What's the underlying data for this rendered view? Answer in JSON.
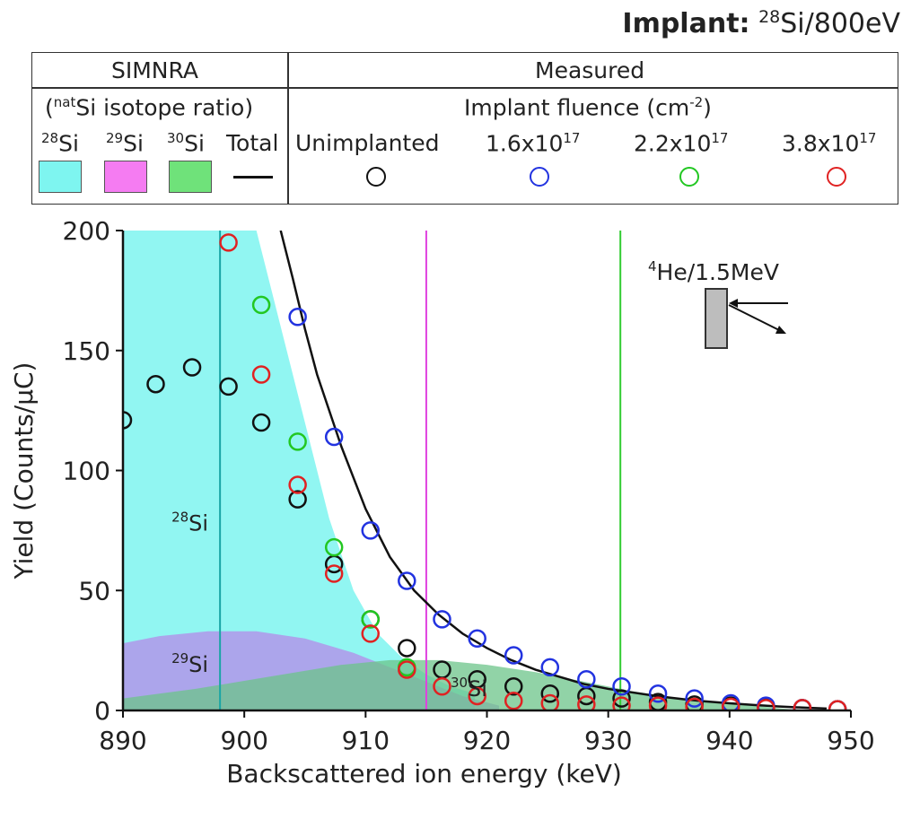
{
  "header": {
    "implant_label": "Implant:",
    "implant_sup": "28",
    "implant_rest": "Si/800eV"
  },
  "legend": {
    "simnra_header": "SIMNRA",
    "measured_header": "Measured",
    "simnra_sub_pre": "(",
    "simnra_sub_sup": "nat",
    "simnra_sub_rest": "Si isotope ratio)",
    "fluence_label": "Implant fluence (cm",
    "fluence_sup": "-2",
    "fluence_close": ")",
    "items": [
      {
        "sup": "28",
        "label": "Si",
        "color": "#7ef5f0",
        "kind": "area"
      },
      {
        "sup": "29",
        "label": "Si",
        "color": "#f57cf2",
        "kind": "area"
      },
      {
        "sup": "30",
        "label": "Si",
        "color": "#6fe27a",
        "kind": "area"
      },
      {
        "sup": "",
        "label": "Total",
        "color": "#111111",
        "kind": "line"
      }
    ],
    "measured": [
      {
        "base": "Unimplanted",
        "exp": "",
        "color": "#111111"
      },
      {
        "base": "1.6x10",
        "exp": "17",
        "color": "#2233e0"
      },
      {
        "base": "2.2x10",
        "exp": "17",
        "color": "#22c722"
      },
      {
        "base": "3.8x10",
        "exp": "17",
        "color": "#e02222"
      }
    ]
  },
  "inset": {
    "label_sup": "4",
    "label_rest": "He/1.5MeV"
  },
  "chart_data": {
    "type": "scatter",
    "xlabel": "Backscattered ion energy (keV)",
    "ylabel": "Yield (Counts/μC)",
    "xlim": [
      890,
      950
    ],
    "ylim": [
      0,
      200
    ],
    "xticks": [
      890,
      900,
      910,
      920,
      930,
      940,
      950
    ],
    "yticks": [
      0,
      50,
      100,
      150,
      200
    ],
    "vertical_lines": [
      {
        "x": 898,
        "color": "#1aa5a5"
      },
      {
        "x": 915,
        "color": "#e040e0"
      },
      {
        "x": 931,
        "color": "#33cc33"
      }
    ],
    "area_labels": [
      {
        "sup": "28",
        "text": "Si",
        "x": 894,
        "y": 75
      },
      {
        "sup": "29",
        "text": "Si",
        "x": 894,
        "y": 16
      },
      {
        "sup": "30",
        "text": "Si",
        "x": 917,
        "y": 6
      }
    ],
    "simnra_areas": [
      {
        "name": "28Si",
        "color": "#7ef5f0",
        "x": [
          890,
          898,
          901,
          903,
          905,
          907,
          909,
          911,
          913,
          915,
          917,
          919
        ],
        "y": [
          200,
          200,
          200,
          160,
          120,
          80,
          50,
          32,
          22,
          15,
          10,
          7
        ]
      },
      {
        "name": "29Si",
        "color": "#b58ae8",
        "x": [
          890,
          893,
          897,
          901,
          905,
          909,
          912,
          915,
          918,
          921
        ],
        "y": [
          28,
          31,
          33,
          33,
          30,
          24,
          18,
          12,
          6,
          2
        ]
      },
      {
        "name": "30Si",
        "color": "#6cc48a",
        "x": [
          890,
          896,
          902,
          908,
          912,
          916,
          920,
          924,
          928,
          932,
          936,
          940,
          944,
          946
        ],
        "y": [
          5,
          9,
          14,
          19,
          21,
          21,
          19,
          16,
          12,
          8,
          5,
          3,
          1,
          0
        ]
      }
    ],
    "total_curve": {
      "x": [
        903,
        904,
        905,
        906,
        908,
        910,
        912,
        914,
        916,
        918,
        920,
        922,
        924,
        926,
        928,
        930,
        932,
        934,
        936,
        938,
        940,
        942,
        944,
        946,
        948
      ],
      "y": [
        200,
        180,
        159,
        140,
        110,
        84,
        64,
        50,
        40,
        32,
        26,
        21,
        17,
        14,
        11,
        9,
        7.5,
        6,
        4.8,
        3.8,
        3,
        2.3,
        1.7,
        1.2,
        0.8
      ]
    },
    "series": [
      {
        "name": "Unimplanted",
        "color": "#111111",
        "x": [
          890,
          892.7,
          895.7,
          898.7,
          901.4,
          904.4,
          907.4,
          910.4,
          913.4,
          916.3,
          919.2,
          922.2,
          925.2,
          928.2,
          931.1,
          934.1,
          937.1,
          940.1,
          943.0,
          946.0,
          948.9
        ],
        "y": [
          121,
          136,
          143,
          135,
          120,
          88,
          61,
          38,
          26,
          17,
          13,
          10,
          7,
          6,
          5,
          3.5,
          2.5,
          2,
          1.5,
          1,
          0.5
        ]
      },
      {
        "name": "1.6x10^17",
        "color": "#2233e0",
        "x": [
          904.4,
          907.4,
          910.4,
          913.4,
          916.3,
          919.2,
          922.2,
          925.2,
          928.2,
          931.1,
          934.1,
          937.1,
          940.1,
          943.0,
          946.0,
          948.9
        ],
        "y": [
          164,
          114,
          75,
          54,
          38,
          30,
          23,
          18,
          13,
          10,
          7,
          5,
          3,
          2,
          1,
          0.5
        ]
      },
      {
        "name": "2.2x10^17",
        "color": "#22c722",
        "x": [
          901.4,
          904.4,
          907.4,
          910.4,
          913.4
        ],
        "y": [
          169,
          112,
          68,
          38,
          18
        ]
      },
      {
        "name": "3.8x10^17",
        "color": "#e02222",
        "x": [
          898.7,
          901.4,
          904.4,
          907.4,
          910.4,
          913.4,
          916.3,
          919.2,
          922.2,
          925.2,
          928.2,
          931.1,
          934.1,
          937.1,
          940.1,
          943.0,
          946.0,
          948.9
        ],
        "y": [
          195,
          140,
          94,
          57,
          32,
          17,
          10,
          6,
          4,
          3,
          2.5,
          2,
          2,
          1.5,
          1.5,
          1,
          1,
          0.5
        ]
      }
    ]
  }
}
